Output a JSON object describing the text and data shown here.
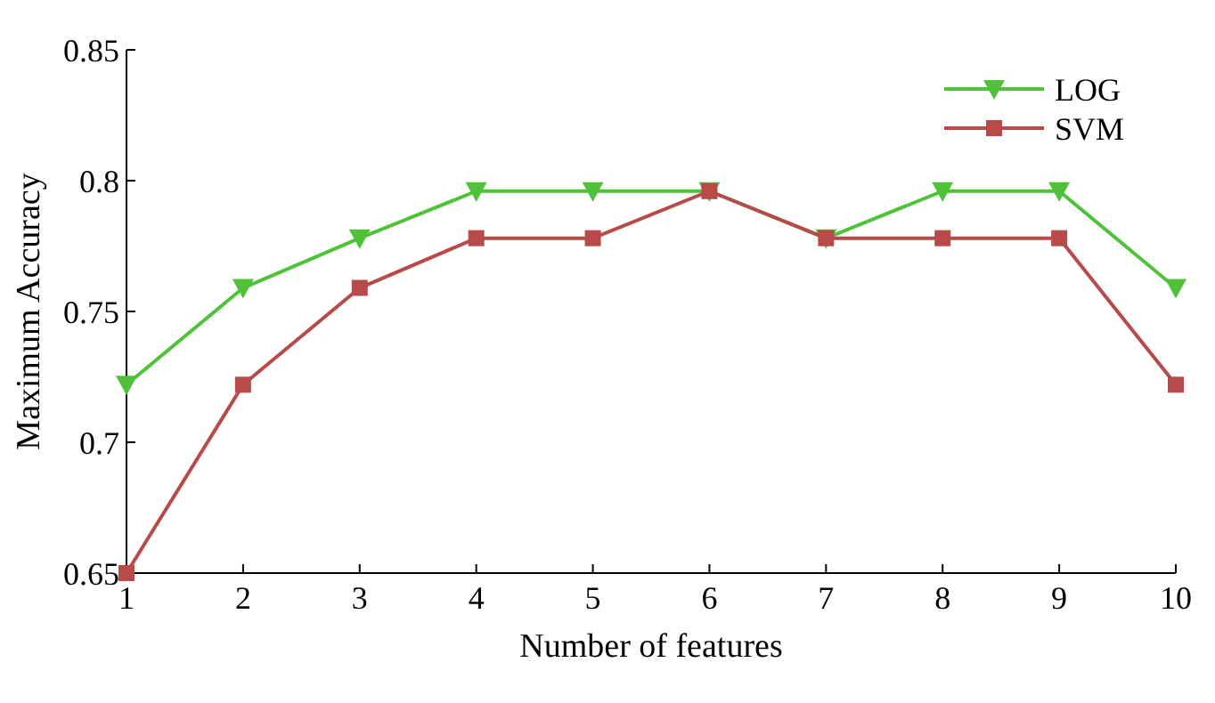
{
  "chart_data": {
    "type": "line",
    "xlabel": "Number of features",
    "ylabel": "Maximum Accuracy",
    "x": [
      1,
      2,
      3,
      4,
      5,
      6,
      7,
      8,
      9,
      10
    ],
    "series": [
      {
        "name": "LOG",
        "color": "#4fc23a",
        "marker": "triangle",
        "values": [
          0.722,
          0.759,
          0.778,
          0.796,
          0.796,
          0.796,
          0.778,
          0.796,
          0.796,
          0.759
        ]
      },
      {
        "name": "SVM",
        "color": "#b84a4a",
        "marker": "square",
        "values": [
          0.65,
          0.722,
          0.759,
          0.778,
          0.778,
          0.796,
          0.778,
          0.778,
          0.778,
          0.722
        ]
      }
    ],
    "xlim": [
      1,
      10
    ],
    "xticks": [
      1,
      2,
      3,
      4,
      5,
      6,
      7,
      8,
      9,
      10
    ],
    "ylim": [
      0.65,
      0.85
    ],
    "yticks": [
      0.65,
      0.7,
      0.75,
      0.8,
      0.85
    ],
    "grid": false,
    "legend": "top right",
    "line_style": "solid"
  }
}
